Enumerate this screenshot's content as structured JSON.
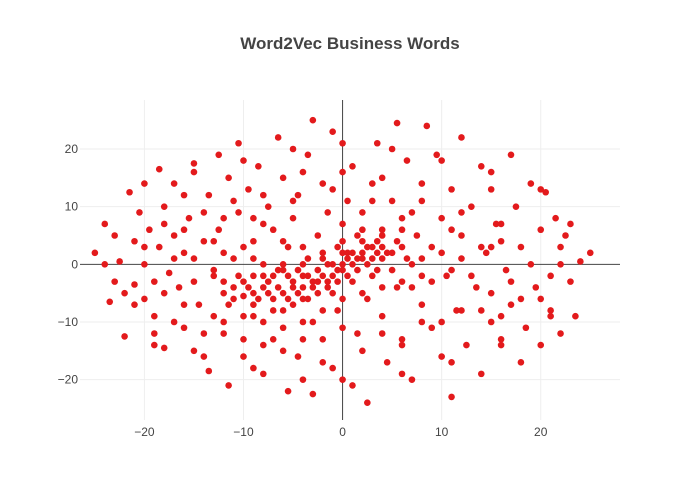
{
  "chart_data": {
    "type": "scatter",
    "title": "Word2Vec Business Words",
    "xlabel": "",
    "ylabel": "",
    "xlim": [
      -26.5,
      28
    ],
    "ylim": [
      -27,
      28.5
    ],
    "x_ticks": [
      -20,
      -10,
      0,
      10,
      20
    ],
    "y_ticks": [
      -20,
      -10,
      0,
      10,
      20
    ],
    "x_tick_labels": [
      "−20",
      "−10",
      "0",
      "10",
      "20"
    ],
    "y_tick_labels": [
      "−20",
      "−10",
      "0",
      "10",
      "20"
    ],
    "grid": true,
    "legend": "none",
    "zero_lines": true,
    "marker_color": "#e31a1c",
    "series": [
      {
        "points": [
          [
            -25,
            2
          ],
          [
            -24,
            7
          ],
          [
            -23.5,
            -6.5
          ],
          [
            -23,
            -3
          ],
          [
            -22.5,
            0.5
          ],
          [
            -22,
            -12.5
          ],
          [
            -21.5,
            12.5
          ],
          [
            -21,
            4
          ],
          [
            -21,
            -3.5
          ],
          [
            -20.5,
            9
          ],
          [
            -20,
            0
          ],
          [
            -20,
            -6
          ],
          [
            -19.5,
            6
          ],
          [
            -19,
            -14
          ],
          [
            -19,
            -9
          ],
          [
            -18.5,
            3
          ],
          [
            -18.5,
            16.5
          ],
          [
            -18,
            -14.5
          ],
          [
            -18,
            10
          ],
          [
            -17.5,
            -1.5
          ],
          [
            -17,
            14
          ],
          [
            -17,
            5
          ],
          [
            -16.5,
            -4
          ],
          [
            -16,
            12
          ],
          [
            -16,
            -11
          ],
          [
            -15.5,
            8
          ],
          [
            -15,
            17.5
          ],
          [
            -15,
            -15
          ],
          [
            -15,
            1
          ],
          [
            -14.5,
            -7
          ],
          [
            -14,
            4
          ],
          [
            -13.5,
            -18.5
          ],
          [
            -13.5,
            12
          ],
          [
            -13,
            -2
          ],
          [
            -12.5,
            19
          ],
          [
            -12.5,
            6
          ],
          [
            -12,
            -12
          ],
          [
            -11.5,
            -21
          ],
          [
            -11.5,
            15
          ],
          [
            -11,
            1
          ],
          [
            -11,
            -6
          ],
          [
            -10.5,
            21
          ],
          [
            -10.5,
            9
          ],
          [
            -10,
            -16
          ],
          [
            -10,
            -3
          ],
          [
            -9.5,
            13
          ],
          [
            -9,
            -9
          ],
          [
            -9,
            4
          ],
          [
            -8.5,
            17
          ],
          [
            -8,
            -19
          ],
          [
            -8,
            0
          ],
          [
            -7.5,
            10
          ],
          [
            -7.5,
            -5
          ],
          [
            -7,
            -13
          ],
          [
            -7,
            6
          ],
          [
            -6.5,
            22
          ],
          [
            -6,
            -1
          ],
          [
            -6,
            -8
          ],
          [
            -6,
            15
          ],
          [
            -5.5,
            -22
          ],
          [
            -5.5,
            3
          ],
          [
            -5,
            -4
          ],
          [
            -5,
            8
          ],
          [
            -4.5,
            -16
          ],
          [
            -4.5,
            12
          ],
          [
            -4,
            -2
          ],
          [
            -4,
            -6
          ],
          [
            -3.5,
            19
          ],
          [
            -3.5,
            1
          ],
          [
            -3,
            -10
          ],
          [
            -3,
            -22.5
          ],
          [
            -3,
            25
          ],
          [
            -2.5,
            5
          ],
          [
            -2.5,
            -3
          ],
          [
            -2,
            14
          ],
          [
            -2,
            -13
          ],
          [
            -1.5,
            0
          ],
          [
            -1.5,
            9
          ],
          [
            -1,
            -5
          ],
          [
            -1,
            -18
          ],
          [
            -1,
            23
          ],
          [
            -0.5,
            3
          ],
          [
            -0.5,
            -8
          ],
          [
            0,
            7
          ],
          [
            0,
            -1
          ],
          [
            0,
            -20
          ],
          [
            0.5,
            11
          ],
          [
            0.5,
            2
          ],
          [
            1,
            -3
          ],
          [
            1,
            17
          ],
          [
            1.5,
            5
          ],
          [
            1.5,
            -12
          ],
          [
            2,
            1
          ],
          [
            2,
            9
          ],
          [
            2.5,
            -6
          ],
          [
            2.5,
            -24
          ],
          [
            3,
            3
          ],
          [
            3,
            14
          ],
          [
            3.5,
            -1
          ],
          [
            3.5,
            21
          ],
          [
            4,
            6
          ],
          [
            4,
            -9
          ],
          [
            4.5,
            -17
          ],
          [
            5,
            2
          ],
          [
            5,
            11
          ],
          [
            5.5,
            -4
          ],
          [
            5.5,
            24.5
          ],
          [
            6,
            8
          ],
          [
            6,
            -13
          ],
          [
            6.5,
            18
          ],
          [
            7,
            0
          ],
          [
            7,
            -20
          ],
          [
            7.5,
            5
          ],
          [
            8,
            -7
          ],
          [
            8,
            14
          ],
          [
            8.5,
            24
          ],
          [
            9,
            -11
          ],
          [
            9,
            3
          ],
          [
            9.5,
            19
          ],
          [
            10,
            -16
          ],
          [
            10,
            8
          ],
          [
            10.5,
            -2
          ],
          [
            11,
            13
          ],
          [
            11,
            -23
          ],
          [
            11.5,
            -8
          ],
          [
            12,
            22
          ],
          [
            12,
            5
          ],
          [
            12.5,
            -14
          ],
          [
            13,
            10
          ],
          [
            13.5,
            -4
          ],
          [
            14,
            17
          ],
          [
            14,
            -19
          ],
          [
            14.5,
            2
          ],
          [
            15,
            -10
          ],
          [
            15,
            13
          ],
          [
            15.5,
            7
          ],
          [
            16,
            -14
          ],
          [
            16.5,
            -1
          ],
          [
            17,
            19
          ],
          [
            17,
            -7
          ],
          [
            17.5,
            10
          ],
          [
            18,
            -17
          ],
          [
            18,
            3
          ],
          [
            18.5,
            -11
          ],
          [
            19,
            14
          ],
          [
            19.5,
            -4
          ],
          [
            20,
            6
          ],
          [
            20,
            -14
          ],
          [
            20.5,
            12.5
          ],
          [
            21,
            -2
          ],
          [
            21,
            -8
          ],
          [
            21.5,
            8
          ],
          [
            22,
            0
          ],
          [
            22,
            -12
          ],
          [
            22.5,
            5
          ],
          [
            23,
            -3
          ],
          [
            23.5,
            -9
          ],
          [
            24,
            0.5
          ],
          [
            25,
            2
          ],
          [
            22,
            3
          ],
          [
            -24,
            0
          ],
          [
            -22,
            -5
          ],
          [
            -20,
            3
          ],
          [
            -19,
            -3
          ],
          [
            -18,
            7
          ],
          [
            -17,
            -10
          ],
          [
            -16,
            2
          ],
          [
            -15,
            -3
          ],
          [
            -14,
            9
          ],
          [
            -13,
            -9
          ],
          [
            -12,
            -5
          ],
          [
            -11,
            11
          ],
          [
            -10,
            3
          ],
          [
            -9,
            -7
          ],
          [
            -8,
            7
          ],
          [
            -7,
            -2
          ],
          [
            -6,
            4
          ],
          [
            -5,
            -7
          ],
          [
            -4,
            3
          ],
          [
            -3,
            -4
          ],
          [
            -2,
            2
          ],
          [
            -1,
            -2
          ],
          [
            0,
            2
          ],
          [
            1,
            0
          ],
          [
            2,
            4
          ],
          [
            3,
            -2
          ],
          [
            4,
            1
          ],
          [
            5,
            -1
          ],
          [
            6,
            3
          ],
          [
            7,
            -4
          ],
          [
            8,
            1
          ],
          [
            9,
            -3
          ],
          [
            10,
            2
          ],
          [
            11,
            -1
          ],
          [
            12,
            1
          ],
          [
            13,
            -2
          ],
          [
            14,
            3
          ],
          [
            15,
            -5
          ],
          [
            16,
            4
          ],
          [
            17,
            -3
          ],
          [
            -11,
            -4
          ],
          [
            -10,
            -5.5
          ],
          [
            -9.5,
            -4
          ],
          [
            -9,
            -2
          ],
          [
            -8.5,
            -6
          ],
          [
            -8,
            -4
          ],
          [
            -7.5,
            -3
          ],
          [
            -7,
            -6
          ],
          [
            -6.5,
            -4
          ],
          [
            -6,
            -5
          ],
          [
            -5.5,
            -2
          ],
          [
            -5,
            -3
          ],
          [
            -4.5,
            -5
          ],
          [
            -4,
            -4
          ],
          [
            -3.5,
            -2
          ],
          [
            -3,
            -3
          ],
          [
            -2.5,
            -1
          ],
          [
            -2,
            -2
          ],
          [
            -1.5,
            -3
          ],
          [
            -1,
            0
          ],
          [
            -0.5,
            -1
          ],
          [
            0,
            0
          ],
          [
            0.5,
            1
          ],
          [
            1,
            2
          ],
          [
            1.5,
            1
          ],
          [
            2,
            2
          ],
          [
            2.5,
            3
          ],
          [
            3,
            1
          ],
          [
            3.5,
            2
          ],
          [
            4,
            3
          ],
          [
            -12,
            -3
          ],
          [
            -11.5,
            -7
          ],
          [
            -10.5,
            -2
          ],
          [
            -9,
            -5
          ],
          [
            -8,
            -2
          ],
          [
            -7,
            -8
          ],
          [
            -6.5,
            -1
          ],
          [
            -5.5,
            -6
          ],
          [
            -4.5,
            -1
          ],
          [
            -3.5,
            -6
          ],
          [
            -2.5,
            -5
          ],
          [
            -1.5,
            -4
          ],
          [
            -0.5,
            -3
          ],
          [
            0.5,
            -2
          ],
          [
            1.5,
            -1
          ],
          [
            2.5,
            0
          ],
          [
            3.5,
            4
          ],
          [
            4.5,
            2
          ],
          [
            5.5,
            4
          ],
          [
            6.5,
            1
          ],
          [
            -13,
            -1
          ],
          [
            -12,
            2
          ],
          [
            -9,
            1
          ],
          [
            -6,
            0
          ],
          [
            -4,
            0
          ],
          [
            -2,
            1
          ],
          [
            0,
            4
          ],
          [
            2,
            6
          ],
          [
            4,
            5
          ],
          [
            6,
            6
          ],
          [
            -10,
            -9
          ],
          [
            -8,
            -10
          ],
          [
            -6,
            -11
          ],
          [
            -4,
            -10
          ],
          [
            -2,
            -8
          ],
          [
            0,
            -6
          ],
          [
            2,
            -5
          ],
          [
            4,
            -4
          ],
          [
            6,
            -3
          ],
          [
            8,
            -2
          ],
          [
            -20,
            14
          ],
          [
            -15,
            16
          ],
          [
            -10,
            18
          ],
          [
            -5,
            20
          ],
          [
            0,
            21
          ],
          [
            5,
            20
          ],
          [
            10,
            18
          ],
          [
            15,
            16
          ],
          [
            20,
            13
          ],
          [
            -19,
            -12
          ],
          [
            -14,
            -16
          ],
          [
            -9,
            -18
          ],
          [
            -4,
            -20
          ],
          [
            1,
            -21
          ],
          [
            6,
            -19
          ],
          [
            11,
            -17
          ],
          [
            16,
            -13
          ],
          [
            21,
            -9
          ],
          [
            -23,
            5
          ],
          [
            23,
            7
          ],
          [
            -21,
            -7
          ],
          [
            -18,
            -5
          ],
          [
            -16,
            6
          ],
          [
            -14,
            -12
          ],
          [
            -12,
            8
          ],
          [
            -10,
            -13
          ],
          [
            -8,
            12
          ],
          [
            -6,
            -15
          ],
          [
            -4,
            16
          ],
          [
            -2,
            -17
          ],
          [
            0,
            16
          ],
          [
            2,
            -15
          ],
          [
            4,
            15
          ],
          [
            6,
            -14
          ],
          [
            8,
            11
          ],
          [
            10,
            -10
          ],
          [
            12,
            9
          ],
          [
            14,
            -8
          ],
          [
            16,
            7
          ],
          [
            18,
            -6
          ],
          [
            -17,
            1
          ],
          [
            -13,
            4
          ],
          [
            -9,
            8
          ],
          [
            -5,
            11
          ],
          [
            -1,
            13
          ],
          [
            3,
            11
          ],
          [
            7,
            9
          ],
          [
            11,
            6
          ],
          [
            15,
            3
          ],
          [
            19,
            0
          ],
          [
            -16,
            -7
          ],
          [
            -12,
            -10
          ],
          [
            -8,
            -14
          ],
          [
            -4,
            -13
          ],
          [
            0,
            -11
          ],
          [
            4,
            -12
          ],
          [
            8,
            -10
          ],
          [
            12,
            -8
          ],
          [
            16,
            -9
          ],
          [
            20,
            -6
          ]
        ]
      }
    ]
  }
}
